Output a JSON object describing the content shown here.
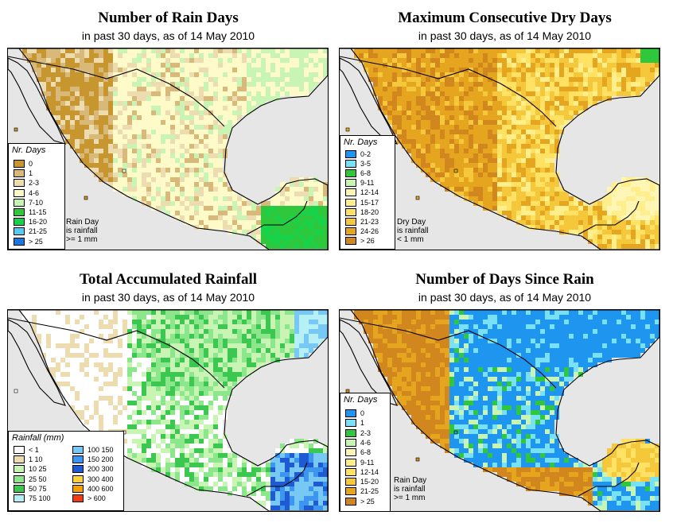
{
  "subtitle": "in past 30 days, as of  14 May 2010",
  "colors": {
    "land_default": "#fffbc8",
    "ocean": "#e6e6e6",
    "border": "#000000"
  },
  "panels": [
    {
      "id": "rain-days",
      "title": "Number of Rain Days",
      "legend_title": "Nr. Days",
      "legend": [
        {
          "label": "0",
          "color": "#c8962e"
        },
        {
          "label": "1",
          "color": "#d9b97a"
        },
        {
          "label": "2-3",
          "color": "#ecdcb0"
        },
        {
          "label": "4-6",
          "color": "#fffbc8"
        },
        {
          "label": "7-10",
          "color": "#c8f5b4"
        },
        {
          "label": "11-15",
          "color": "#2fc83c"
        },
        {
          "label": "16-20",
          "color": "#18d24a"
        },
        {
          "label": "21-25",
          "color": "#5ac8f5"
        },
        {
          "label": "> 25",
          "color": "#1e78dc"
        }
      ],
      "note": [
        "Rain Day",
        "is rainfall",
        ">= 1 mm"
      ]
    },
    {
      "id": "max-dry-days",
      "title": "Maximum Consecutive Dry Days",
      "legend_title": "Nr. Days",
      "legend": [
        {
          "label": "0-2",
          "color": "#1e96f0"
        },
        {
          "label": "3-5",
          "color": "#78e1f5"
        },
        {
          "label": "6-8",
          "color": "#2fc83c"
        },
        {
          "label": "9-11",
          "color": "#c8f5b4"
        },
        {
          "label": "12-14",
          "color": "#fff5b4"
        },
        {
          "label": "15-17",
          "color": "#ffee8c"
        },
        {
          "label": "18-20",
          "color": "#ffe164"
        },
        {
          "label": "21-23",
          "color": "#f5c83c"
        },
        {
          "label": "24-26",
          "color": "#e6a51e"
        },
        {
          "label": "> 26",
          "color": "#d2871e"
        }
      ],
      "note": [
        "Dry Day",
        "is rainfall",
        "< 1 mm"
      ]
    },
    {
      "id": "total-rainfall",
      "title": "Total Accumulated Rainfall",
      "legend_title": "Rainfall (mm)",
      "legend": [
        {
          "label": "< 1",
          "color": "#ffffff"
        },
        {
          "label": "1   10",
          "color": "#ecdcb0"
        },
        {
          "label": "10   25",
          "color": "#c8f5b4"
        },
        {
          "label": "25   50",
          "color": "#8ce68c"
        },
        {
          "label": "50   75",
          "color": "#3cc850"
        },
        {
          "label": "75   100",
          "color": "#b4f0f5"
        },
        {
          "label": "100   150",
          "color": "#78c8f5"
        },
        {
          "label": "150   200",
          "color": "#3c96f0"
        },
        {
          "label": "200   300",
          "color": "#1e5ad2"
        },
        {
          "label": "300   400",
          "color": "#ffd23c"
        },
        {
          "label": "400   600",
          "color": "#f5a000"
        },
        {
          "label": "> 600",
          "color": "#f03c14"
        }
      ],
      "note": []
    },
    {
      "id": "days-since-rain",
      "title": "Number of Days Since Rain",
      "legend_title": "Nr. Days",
      "legend": [
        {
          "label": "0",
          "color": "#1e96f0"
        },
        {
          "label": "1",
          "color": "#78e1f5"
        },
        {
          "label": "2-3",
          "color": "#2fc83c"
        },
        {
          "label": "4-6",
          "color": "#c8f5b4"
        },
        {
          "label": "6-8",
          "color": "#fff5b4"
        },
        {
          "label": "9-11",
          "color": "#ffee8c"
        },
        {
          "label": "12-14",
          "color": "#ffe164"
        },
        {
          "label": "15-20",
          "color": "#f5c83c"
        },
        {
          "label": "21-25",
          "color": "#e6a51e"
        },
        {
          "label": "> 25",
          "color": "#d2871e"
        }
      ],
      "note": [
        "Rain Day",
        "is rainfall",
        ">= 1 mm"
      ]
    }
  ]
}
